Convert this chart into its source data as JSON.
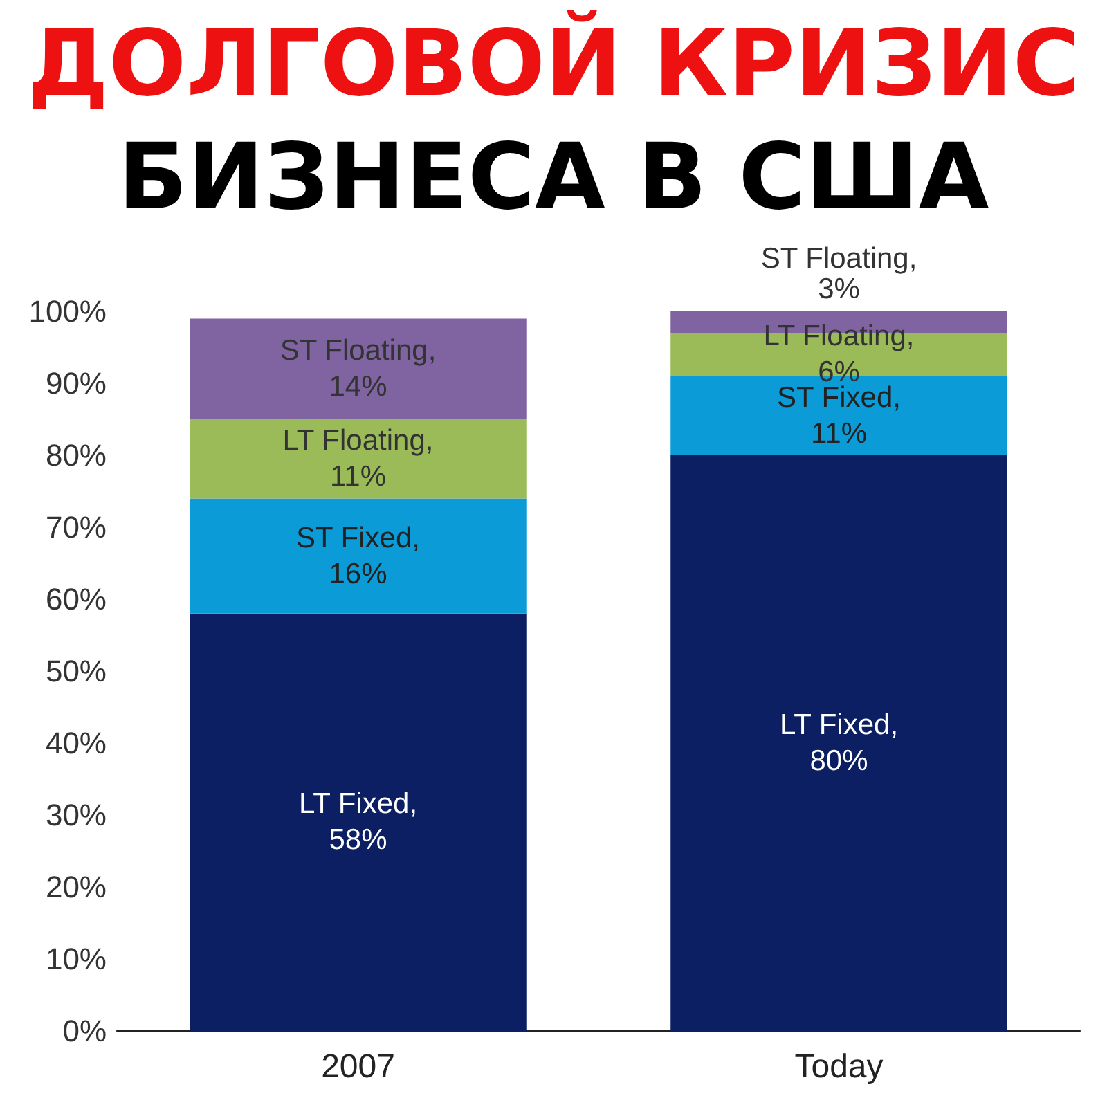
{
  "chart_data": {
    "type": "bar",
    "title": "ДОЛГОВОЙ КРИЗИС",
    "subtitle": "БИЗНЕСА В США",
    "categories": [
      "2007",
      "Today"
    ],
    "stacked": true,
    "series": [
      {
        "name": "LT Fixed,",
        "color": "#0b1f62",
        "values": [
          58,
          80
        ],
        "value_labels": [
          "58%",
          "80%"
        ]
      },
      {
        "name": "ST Fixed,",
        "color": "#0b9bd7",
        "values": [
          16,
          11
        ],
        "value_labels": [
          "16%",
          "11%"
        ]
      },
      {
        "name": "LT Floating,",
        "color": "#9bbb59",
        "values": [
          11,
          6
        ],
        "value_labels": [
          "11%",
          "6%"
        ]
      },
      {
        "name": "ST Floating,",
        "color": "#8064a2",
        "values": [
          14,
          3
        ],
        "value_labels": [
          "14%",
          "3%"
        ]
      }
    ],
    "ylim": [
      0,
      100
    ],
    "yticks": [
      {
        "value": 0,
        "label": "0%"
      },
      {
        "value": 10,
        "label": "10%"
      },
      {
        "value": 20,
        "label": "20%"
      },
      {
        "value": 30,
        "label": "30%"
      },
      {
        "value": 40,
        "label": "40%"
      },
      {
        "value": 50,
        "label": "50%"
      },
      {
        "value": 60,
        "label": "60%"
      },
      {
        "value": 70,
        "label": "70%"
      },
      {
        "value": 80,
        "label": "80%"
      },
      {
        "value": 90,
        "label": "90%"
      },
      {
        "value": 100,
        "label": "100%"
      }
    ],
    "grid": false
  }
}
